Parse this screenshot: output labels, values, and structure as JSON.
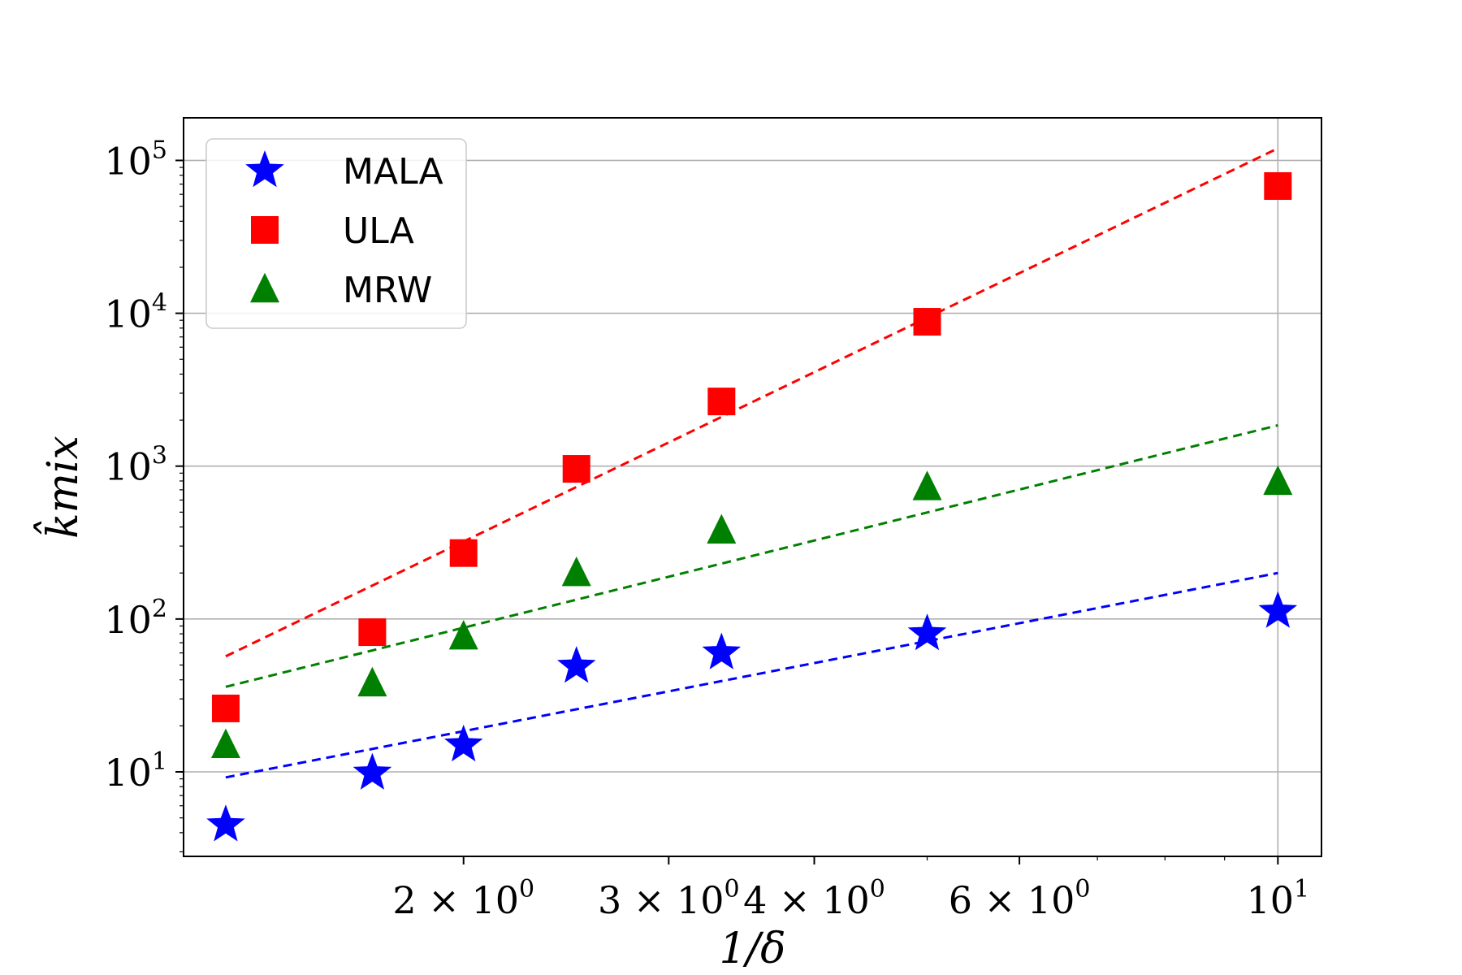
{
  "chart_data": {
    "type": "scatter",
    "xscale": "log",
    "yscale": "log",
    "xlabel": "1/δ",
    "ylabel": "k̂mix",
    "xlim": [
      1.15,
      10.9
    ],
    "ylim": [
      2.8,
      190000
    ],
    "grid": true,
    "legend_position": "top-left",
    "x_ticks": [
      {
        "value": 2,
        "mantissa": "2 × 10",
        "exponent": "0"
      },
      {
        "value": 3,
        "mantissa": "3 × 10",
        "exponent": "0"
      },
      {
        "value": 4,
        "mantissa": "4 × 10",
        "exponent": "0"
      },
      {
        "value": 6,
        "mantissa": "6 × 10",
        "exponent": "0"
      },
      {
        "value": 10,
        "mantissa": "10",
        "exponent": "1"
      }
    ],
    "y_ticks": [
      {
        "value": 10,
        "mantissa": "10",
        "exponent": "1"
      },
      {
        "value": 100,
        "mantissa": "10",
        "exponent": "2"
      },
      {
        "value": 1000,
        "mantissa": "10",
        "exponent": "3"
      },
      {
        "value": 10000,
        "mantissa": "10",
        "exponent": "4"
      },
      {
        "value": 100000,
        "mantissa": "10",
        "exponent": "5"
      }
    ],
    "x": [
      1.25,
      1.67,
      2.0,
      2.5,
      3.33,
      5.0,
      10.0
    ],
    "series": [
      {
        "name": "MALA",
        "marker": "star",
        "color": "#0000ff",
        "values": [
          4.5,
          9.8,
          15,
          49,
          60,
          80,
          112
        ],
        "fit": {
          "x": [
            1.25,
            10.0
          ],
          "y": [
            9.2,
            200
          ]
        }
      },
      {
        "name": "ULA",
        "marker": "square",
        "color": "#ff0000",
        "values": [
          26,
          82,
          270,
          960,
          2650,
          8800,
          68000
        ],
        "fit": {
          "x": [
            1.25,
            10.0
          ],
          "y": [
            57,
            120000
          ]
        }
      },
      {
        "name": "MRW",
        "marker": "triangle",
        "color": "#008000",
        "values": [
          15,
          38,
          77,
          200,
          380,
          730,
          790
        ],
        "fit": {
          "x": [
            1.25,
            10.0
          ],
          "y": [
            36,
            1850
          ]
        }
      }
    ]
  }
}
